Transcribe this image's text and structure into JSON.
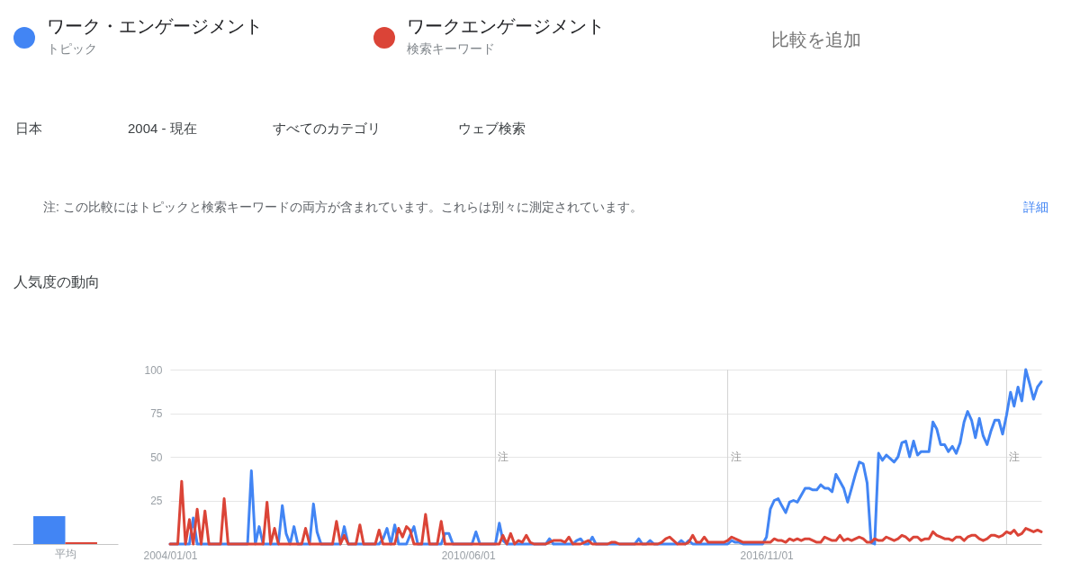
{
  "chart_data": [
    {
      "type": "bar",
      "title": "人気度の動向",
      "categories": [
        "平均"
      ],
      "series": [
        {
          "color": "#4285f4",
          "values": [
            16
          ]
        },
        {
          "color": "#db4437",
          "values": [
            1
          ]
        }
      ],
      "ylim": [
        0,
        100
      ],
      "tick_labels": "x"
    },
    {
      "type": "line",
      "x": [
        "2004-01",
        "2004-02",
        "2004-03",
        "2004-04",
        "2004-05",
        "2004-06",
        "2004-07",
        "2004-08",
        "2004-09",
        "2004-10",
        "2004-11",
        "2004-12",
        "2005-01",
        "2005-02",
        "2005-03",
        "2005-04",
        "2005-05",
        "2005-06",
        "2005-07",
        "2005-08",
        "2005-09",
        "2005-10",
        "2005-11",
        "2005-12",
        "2006-01",
        "2006-02",
        "2006-03",
        "2006-04",
        "2006-05",
        "2006-06",
        "2006-07",
        "2006-08",
        "2006-09",
        "2006-10",
        "2006-11",
        "2006-12",
        "2007-01",
        "2007-02",
        "2007-03",
        "2007-04",
        "2007-05",
        "2007-06",
        "2007-07",
        "2007-08",
        "2007-09",
        "2007-10",
        "2007-11",
        "2007-12",
        "2008-01",
        "2008-02",
        "2008-03",
        "2008-04",
        "2008-05",
        "2008-06",
        "2008-07",
        "2008-08",
        "2008-09",
        "2008-10",
        "2008-11",
        "2008-12",
        "2009-01",
        "2009-02",
        "2009-03",
        "2009-04",
        "2009-05",
        "2009-06",
        "2009-07",
        "2009-08",
        "2009-09",
        "2009-10",
        "2009-11",
        "2009-12",
        "2010-01",
        "2010-02",
        "2010-03",
        "2010-04",
        "2010-05",
        "2010-06",
        "2010-07",
        "2010-08",
        "2010-09",
        "2010-10",
        "2010-11",
        "2010-12",
        "2011-01",
        "2011-02",
        "2011-03",
        "2011-04",
        "2011-05",
        "2011-06",
        "2011-07",
        "2011-08",
        "2011-09",
        "2011-10",
        "2011-11",
        "2011-12",
        "2012-01",
        "2012-02",
        "2012-03",
        "2012-04",
        "2012-05",
        "2012-06",
        "2012-07",
        "2012-08",
        "2012-09",
        "2012-10",
        "2012-11",
        "2012-12",
        "2013-01",
        "2013-02",
        "2013-03",
        "2013-04",
        "2013-05",
        "2013-06",
        "2013-07",
        "2013-08",
        "2013-09",
        "2013-10",
        "2013-11",
        "2013-12",
        "2014-01",
        "2014-02",
        "2014-03",
        "2014-04",
        "2014-05",
        "2014-06",
        "2014-07",
        "2014-08",
        "2014-09",
        "2014-10",
        "2014-11",
        "2014-12",
        "2015-01",
        "2015-02",
        "2015-03",
        "2015-04",
        "2015-05",
        "2015-06",
        "2015-07",
        "2015-08",
        "2015-09",
        "2015-10",
        "2015-11",
        "2015-12",
        "2016-01",
        "2016-02",
        "2016-03",
        "2016-04",
        "2016-05",
        "2016-06",
        "2016-07",
        "2016-08",
        "2016-09",
        "2016-10",
        "2016-11",
        "2016-12",
        "2017-01",
        "2017-02",
        "2017-03",
        "2017-04",
        "2017-05",
        "2017-06",
        "2017-07",
        "2017-08",
        "2017-09",
        "2017-10",
        "2017-11",
        "2017-12",
        "2018-01",
        "2018-02",
        "2018-03",
        "2018-04",
        "2018-05",
        "2018-06",
        "2018-07",
        "2018-08",
        "2018-09",
        "2018-10",
        "2018-11",
        "2018-12",
        "2019-01",
        "2019-02",
        "2019-03",
        "2019-04",
        "2019-05",
        "2019-06",
        "2019-07",
        "2019-08",
        "2019-09",
        "2019-10",
        "2019-11",
        "2019-12",
        "2020-01",
        "2020-02",
        "2020-03",
        "2020-04",
        "2020-05",
        "2020-06",
        "2020-07",
        "2020-08",
        "2020-09",
        "2020-10",
        "2020-11",
        "2020-12",
        "2021-01",
        "2021-02",
        "2021-03",
        "2021-04",
        "2021-05",
        "2021-06",
        "2021-07",
        "2021-08",
        "2021-09",
        "2021-10",
        "2021-11",
        "2021-12",
        "2022-01",
        "2022-02",
        "2022-03",
        "2022-04",
        "2022-05",
        "2022-06",
        "2022-07",
        "2022-08",
        "2022-09",
        "2022-10"
      ],
      "xlim": [
        "2004-01-01",
        "2022-10-01"
      ],
      "xticks": [
        {
          "value": "2004-01-01",
          "label": "2004/01/01"
        },
        {
          "value": "2010-06-01",
          "label": "2010/06/01"
        },
        {
          "value": "2016-11-01",
          "label": "2016/11/01"
        }
      ],
      "ylim": [
        0,
        100
      ],
      "yticks": [
        25,
        50,
        75,
        100
      ],
      "grid": "y",
      "legend": "top",
      "series": [
        {
          "name": "ワーク・エンゲージメント",
          "color": "#4285f4",
          "values": [
            0,
            0,
            0,
            0,
            0,
            0,
            15,
            0,
            0,
            0,
            0,
            0,
            0,
            0,
            0,
            0,
            0,
            0,
            0,
            0,
            0,
            42,
            0,
            10,
            0,
            0,
            0,
            0,
            0,
            22,
            6,
            0,
            10,
            0,
            0,
            0,
            0,
            23,
            7,
            0,
            0,
            0,
            0,
            0,
            0,
            10,
            0,
            0,
            0,
            0,
            0,
            0,
            0,
            0,
            0,
            3,
            9,
            0,
            11,
            0,
            0,
            0,
            5,
            10,
            0,
            0,
            0,
            0,
            0,
            0,
            0,
            6,
            6,
            0,
            0,
            0,
            0,
            0,
            0,
            7,
            0,
            0,
            0,
            0,
            0,
            12,
            2,
            0,
            0,
            0,
            0,
            0,
            0,
            0,
            0,
            0,
            0,
            0,
            3,
            0,
            0,
            0,
            0,
            0,
            0,
            2,
            3,
            0,
            0,
            4,
            0,
            0,
            0,
            0,
            0,
            0,
            0,
            0,
            0,
            0,
            0,
            3,
            0,
            0,
            2,
            0,
            0,
            0,
            0,
            0,
            0,
            0,
            2,
            0,
            2,
            0,
            0,
            0,
            0,
            0,
            0,
            0,
            0,
            0,
            0,
            2,
            1,
            1,
            0,
            0,
            0,
            0,
            0,
            0,
            4,
            20,
            25,
            26,
            22,
            18,
            24,
            25,
            24,
            28,
            32,
            32,
            31,
            31,
            34,
            32,
            32,
            30,
            40,
            36,
            32,
            24,
            32,
            40,
            47,
            46,
            35,
            1,
            0,
            52,
            48,
            51,
            49,
            47,
            50,
            58,
            59,
            50,
            59,
            51,
            53,
            53,
            53,
            70,
            66,
            57,
            57,
            53,
            56,
            52,
            58,
            70,
            76,
            71,
            61,
            72,
            62,
            57,
            65,
            71,
            71,
            63,
            74,
            87,
            79,
            90,
            82,
            100,
            92,
            83,
            90,
            93
          ]
        },
        {
          "name": "ワークエンゲージメント",
          "color": "#db4437",
          "values": [
            0,
            0,
            0,
            36,
            0,
            14,
            0,
            20,
            0,
            19,
            0,
            0,
            0,
            0,
            26,
            0,
            0,
            0,
            0,
            0,
            0,
            0,
            0,
            0,
            0,
            24,
            0,
            9,
            0,
            0,
            0,
            0,
            0,
            0,
            0,
            9,
            0,
            0,
            0,
            0,
            0,
            0,
            0,
            13,
            0,
            5,
            0,
            0,
            0,
            11,
            0,
            0,
            0,
            0,
            8,
            0,
            0,
            0,
            0,
            9,
            4,
            10,
            8,
            0,
            0,
            0,
            17,
            0,
            0,
            0,
            13,
            0,
            0,
            0,
            0,
            0,
            0,
            0,
            0,
            0,
            0,
            0,
            0,
            0,
            0,
            0,
            5,
            0,
            6,
            0,
            2,
            1,
            5,
            1,
            0,
            0,
            0,
            0,
            1,
            2,
            2,
            2,
            1,
            4,
            0,
            0,
            0,
            1,
            2,
            0,
            0,
            0,
            0,
            0,
            1,
            1,
            0,
            0,
            0,
            0,
            0,
            0,
            0,
            0,
            0,
            0,
            0,
            1,
            3,
            4,
            2,
            0,
            0,
            0,
            1,
            5,
            1,
            1,
            4,
            1,
            1,
            1,
            1,
            1,
            2,
            4,
            3,
            2,
            1,
            1,
            1,
            1,
            1,
            1,
            1,
            1,
            3,
            2,
            2,
            1,
            3,
            2,
            3,
            2,
            3,
            3,
            2,
            1,
            1,
            4,
            3,
            2,
            2,
            5,
            2,
            3,
            2,
            3,
            4,
            3,
            1,
            1,
            3,
            2,
            2,
            4,
            3,
            2,
            3,
            5,
            4,
            2,
            4,
            4,
            2,
            3,
            3,
            7,
            5,
            4,
            3,
            3,
            2,
            4,
            4,
            2,
            4,
            5,
            5,
            3,
            2,
            3,
            5,
            5,
            4,
            5,
            7,
            6,
            8,
            5,
            6,
            9,
            8,
            7,
            8,
            7
          ]
        }
      ],
      "ref_lines": [
        {
          "axis": "x",
          "value": "2011-01-01",
          "label": "注"
        },
        {
          "axis": "x",
          "value": "2016-01-01",
          "label": "注"
        },
        {
          "axis": "x",
          "value": "2022-01-01",
          "label": "注"
        }
      ],
      "annotations": [
        "トピック",
        "検索キーワード",
        "比較を追加",
        "日本",
        "2004 - 現在",
        "すべてのカテゴリ",
        "ウェブ検索",
        "注: この比較にはトピックと検索キーワードの両方が含まれています。これらは別々に測定されています。",
        "詳細"
      ]
    }
  ]
}
